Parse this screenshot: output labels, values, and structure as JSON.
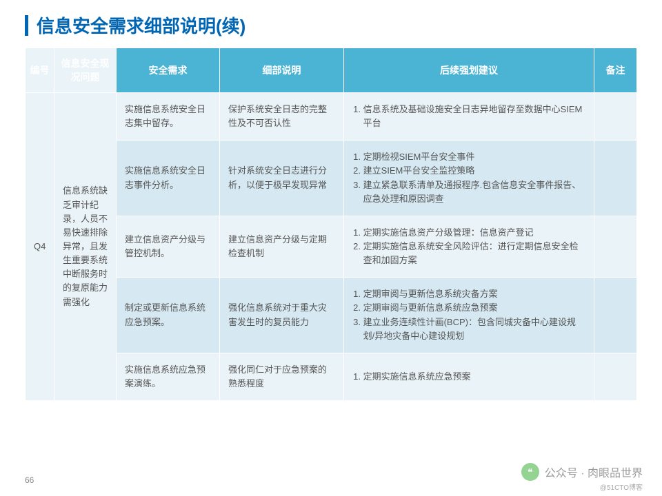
{
  "title": "信息安全需求细部说明(续)",
  "page_number": "66",
  "watermark": {
    "label": "公众号 · 肉眼品世界",
    "sub": "@51CTO博客"
  },
  "table": {
    "headers": [
      "编号",
      "信息安全现况问题",
      "安全需求",
      "细部说明",
      "后续强划建议",
      "备注"
    ],
    "id": "Q4",
    "issue": "信息系统缺乏审计纪录，人员不易快速排除异常，且发生重要系统中断服务时的复原能力需强化",
    "rows": [
      {
        "req": "实施信息系统安全日志集中留存。",
        "detail": "保护系统安全日志的完整性及不可否认性",
        "suggest": [
          "信息系统及基础设施安全日志异地留存至数据中心SIEM平台"
        ],
        "note": ""
      },
      {
        "req": "实施信息系统安全日志事件分析。",
        "detail": "针对系统安全日志进行分析，以便于极早发现异常",
        "suggest": [
          "定期检视SIEM平台安全事件",
          "建立SIEM平台安全监控策略",
          "建立紧急联系清单及通报程序.包含信息安全事件报告、应急处理和原因调查"
        ],
        "note": ""
      },
      {
        "req": "建立信息资产分级与管控机制。",
        "detail": "建立信息资产分级与定期检查机制",
        "suggest": [
          "定期实施信息资产分级管理：信息资产登记",
          "定期实施信息系统安全风险评估：进行定期信息安全检查和加固方案"
        ],
        "note": ""
      },
      {
        "req": "制定或更新信息系统应急预案。",
        "detail": "强化信息系统对于重大灾害发生时的复员能力",
        "suggest": [
          "定期审阅与更新信息系统灾备方案",
          "定期审阅与更新信息系统应急预案",
          "建立业务连续性计画(BCP)：包含同城灾备中心建设规划/异地灾备中心建设规划"
        ],
        "note": ""
      },
      {
        "req": "实施信息系统应急预案演练。",
        "detail": "强化同仁对于应急预案的熟悉程度",
        "suggest": [
          "定期实施信息系统应急预案"
        ],
        "note": ""
      }
    ]
  }
}
